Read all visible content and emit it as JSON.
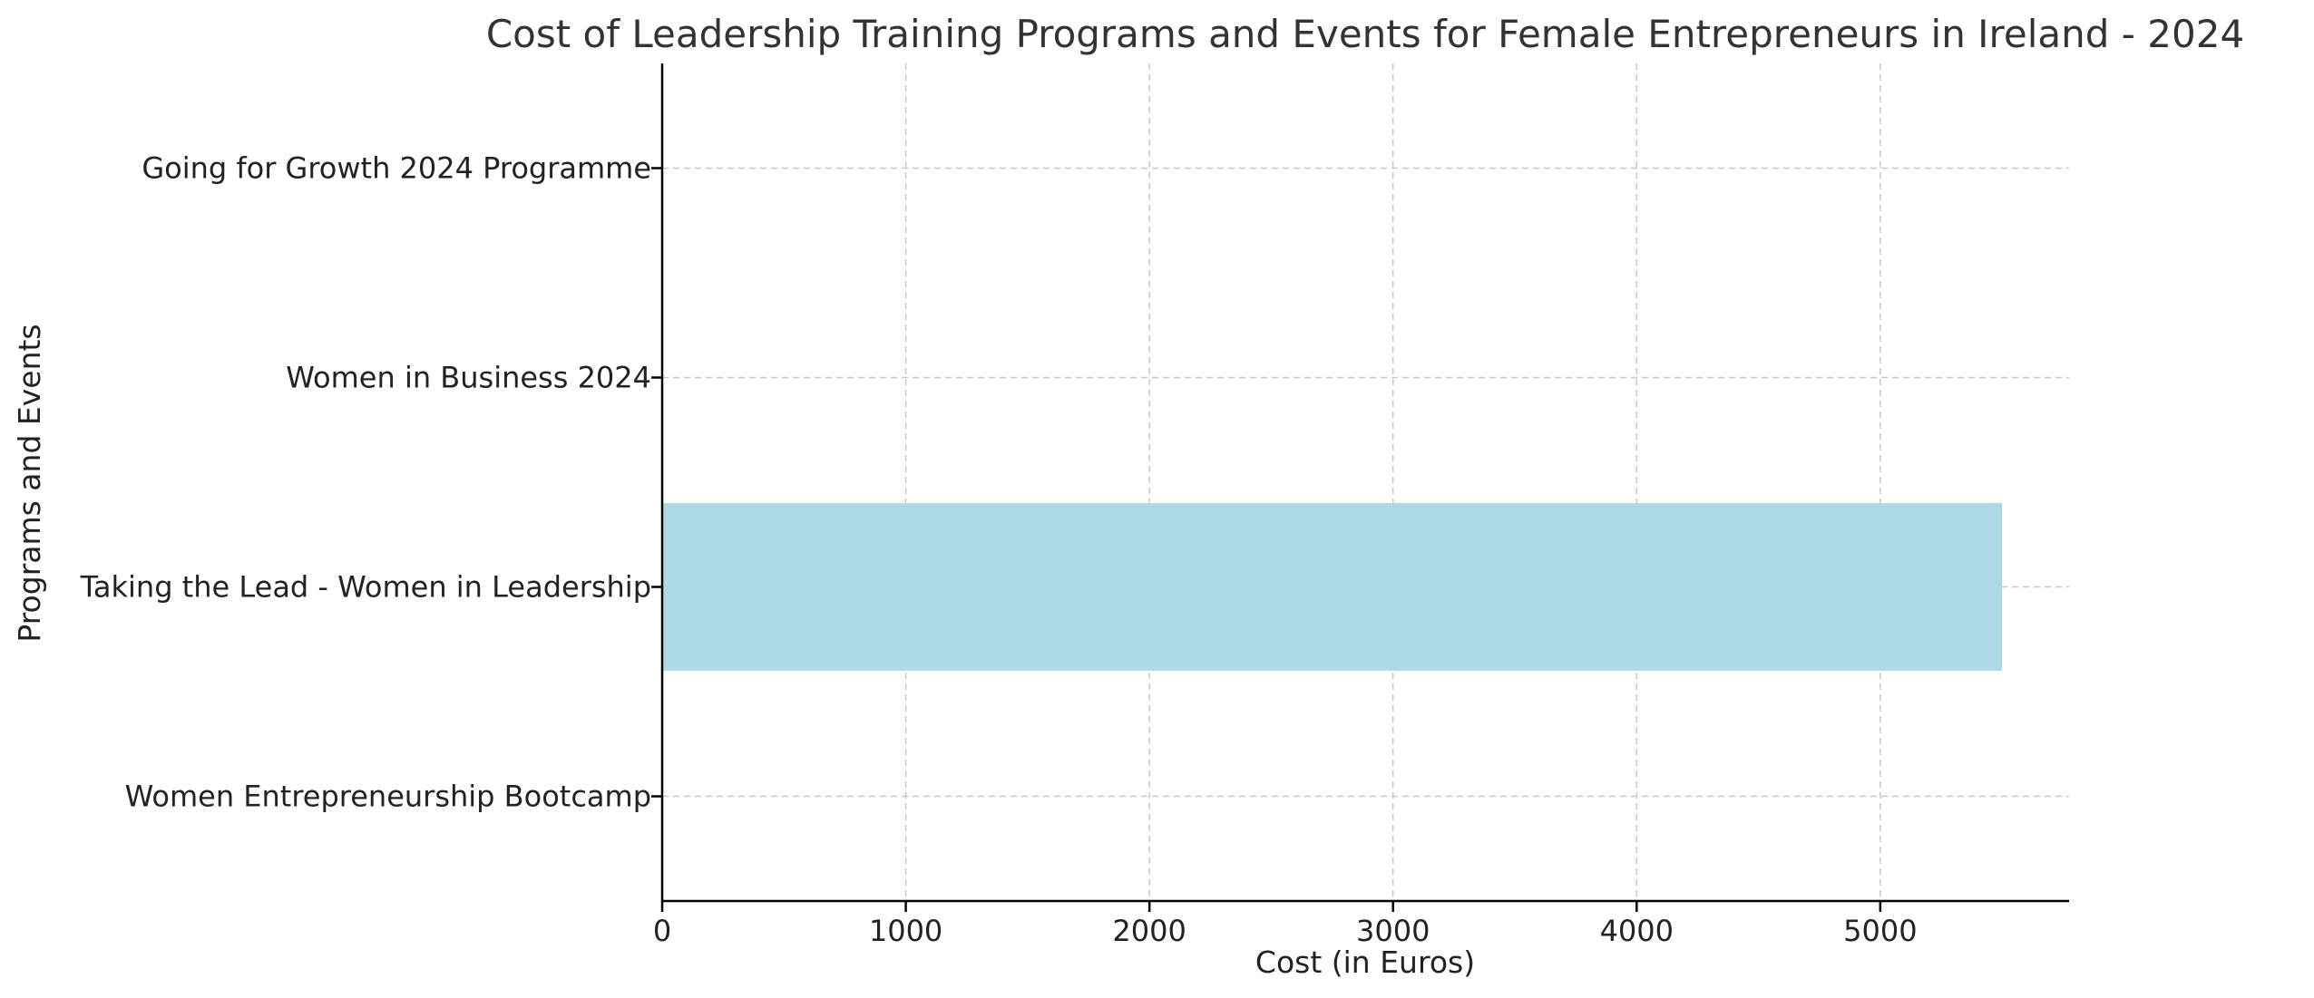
{
  "chart_data": {
    "type": "bar",
    "orientation": "horizontal",
    "title": "Cost of Leadership Training Programs and Events for Female Entrepreneurs in Ireland - 2024",
    "xlabel": "Cost (in Euros)",
    "ylabel": "Programs and Events",
    "categories": [
      "Women Entrepreneurship Bootcamp",
      "Taking the Lead - Women in Leadership",
      "Women in Business 2024",
      "Going for Growth 2024 Programme"
    ],
    "values": [
      0,
      5500,
      0,
      0
    ],
    "xlim": [
      0,
      5775
    ],
    "xticks": [
      0,
      1000,
      2000,
      3000,
      4000,
      5000
    ],
    "bar_color": "#add8e6",
    "grid": true,
    "grid_style": "dashed",
    "legend": "none"
  }
}
